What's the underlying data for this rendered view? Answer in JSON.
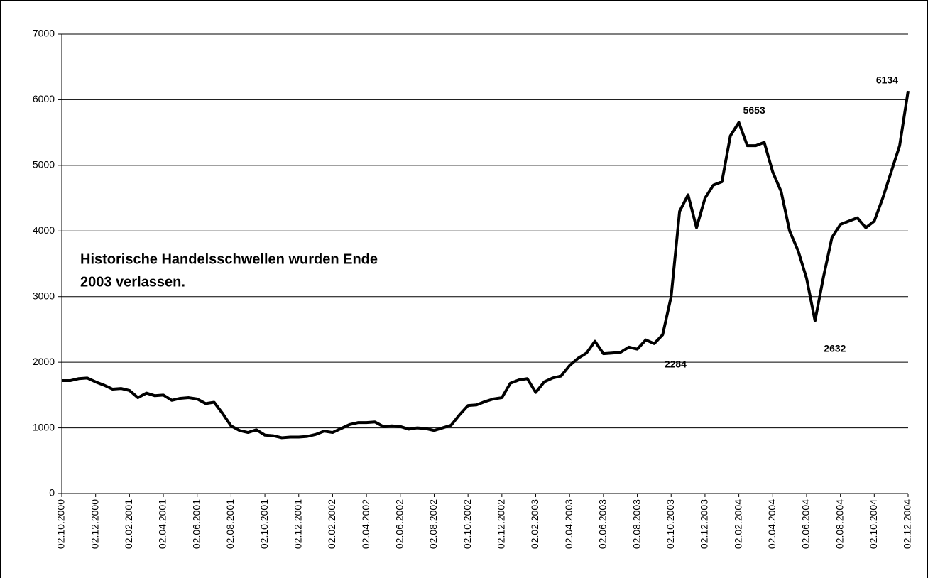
{
  "chart_data": {
    "type": "line",
    "annotation": [
      "Historische Handelsschwellen wurden Ende",
      "2003 verlassen."
    ],
    "categories": [
      "02.10.2000",
      null,
      null,
      null,
      "02.12.2000",
      null,
      null,
      null,
      "02.02.2001",
      null,
      null,
      null,
      "02.04.2001",
      null,
      null,
      null,
      "02.06.2001",
      null,
      null,
      null,
      "02.08.2001",
      null,
      null,
      null,
      "02.10.2001",
      null,
      null,
      null,
      "02.12.2001",
      null,
      null,
      null,
      "02.02.2002",
      null,
      null,
      null,
      "02.04.2002",
      null,
      null,
      null,
      "02.06.2002",
      null,
      null,
      null,
      "02.08.2002",
      null,
      null,
      null,
      "02.10.2002",
      null,
      null,
      null,
      "02.12.2002",
      null,
      null,
      null,
      "02.02.2003",
      null,
      null,
      null,
      "02.04.2003",
      null,
      null,
      null,
      "02.06.2003",
      null,
      null,
      null,
      "02.08.2003",
      null,
      null,
      null,
      "02.10.2003",
      null,
      null,
      null,
      "02.12.2003",
      null,
      null,
      null,
      "02.02.2004",
      null,
      null,
      null,
      "02.04.2004",
      null,
      null,
      null,
      "02.06.2004",
      null,
      null,
      null,
      "02.08.2004",
      null,
      null,
      null,
      "02.10.2004",
      null,
      null,
      null,
      "02.12.2004"
    ],
    "values": [
      1720,
      1720,
      1750,
      1760,
      1700,
      1650,
      1590,
      1600,
      1570,
      1460,
      1530,
      1490,
      1500,
      1420,
      1450,
      1460,
      1440,
      1370,
      1390,
      1220,
      1030,
      960,
      930,
      970,
      890,
      880,
      850,
      860,
      860,
      870,
      900,
      950,
      930,
      990,
      1050,
      1080,
      1080,
      1090,
      1020,
      1030,
      1020,
      980,
      1000,
      990,
      960,
      1000,
      1040,
      1200,
      1340,
      1350,
      1400,
      1440,
      1460,
      1680,
      1730,
      1750,
      1540,
      1700,
      1760,
      1790,
      1950,
      2060,
      2140,
      2320,
      2130,
      2140,
      2150,
      2230,
      2200,
      2340,
      2284,
      2420,
      3000,
      4300,
      4550,
      4050,
      4500,
      4700,
      4750,
      5450,
      5653,
      5300,
      5300,
      5350,
      4900,
      4600,
      4000,
      3700,
      3280,
      2632,
      3300,
      3900,
      4100,
      4150,
      4200,
      4050,
      4150,
      4500,
      4900,
      5300,
      6134
    ],
    "color": "#000000",
    "ylim": [
      0,
      7000
    ],
    "yticks": [
      0,
      1000,
      2000,
      3000,
      4000,
      5000,
      6000,
      7000
    ],
    "grid": true
  }
}
